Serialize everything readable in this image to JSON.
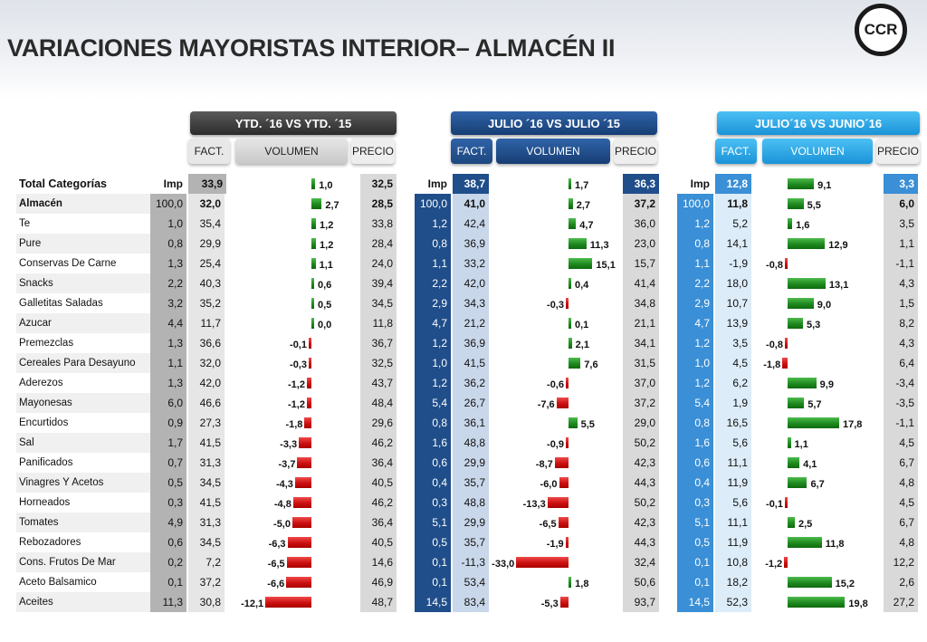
{
  "title": "VARIACIONES MAYORISTAS INTERIOR– ALMACÉN II",
  "logo_text": "CCR",
  "colors": {
    "ytd_header": "#3c3c3c",
    "julio_header": "#1e4d8c",
    "mom_header": "#2aa8e8",
    "ytd_imp": "#b3b3b3",
    "julio_imp": "#1f4e8a",
    "julio_vol": "#c9d7ea",
    "mom_imp": "#3a8fd6",
    "mom_vol": "#dcecf8",
    "precio_bg": "#d9d9d9",
    "gray_bg": "#e6e6e6",
    "positive": "#1f8a1f",
    "negative": "#cc1111"
  },
  "groups": [
    {
      "label": "YTD. ´16 VS YTD. ´15",
      "fact": "FACT.",
      "volumen": "VOLUMEN",
      "precio": "PRECIO"
    },
    {
      "label": "JULIO ´16 VS  JULIO ´15",
      "fact": "FACT.",
      "volumen": "VOLUMEN",
      "precio": "PRECIO"
    },
    {
      "label": "JULIO´16 VS JUNIO´16",
      "fact": "FACT.",
      "volumen": "VOLUMEN",
      "precio": "PRECIO"
    }
  ],
  "table_header": {
    "category": "Total  Categorías",
    "imp1": "Imp",
    "fact1": "33,9",
    "vol1": "1,0",
    "precio1": "32,5",
    "imp2": "Imp",
    "fact2": "38,7",
    "vol2": "1,7",
    "precio2": "36,3",
    "imp3": "Imp",
    "fact3": "12,8",
    "vol3": "9,1",
    "precio3": "3,3"
  },
  "chart_data": {
    "type": "table",
    "title": "VARIACIONES MAYORISTAS INTERIOR– ALMACÉN II",
    "columns": [
      "Imp",
      "FACT.",
      "VOLUMEN",
      "PRECIO"
    ],
    "totals": {
      "ytd": {
        "fact": 33.9,
        "vol": 1.0,
        "precio": 32.5
      },
      "julio": {
        "fact": 38.7,
        "vol": 1.7,
        "precio": 36.3
      },
      "mom": {
        "fact": 12.8,
        "vol": 9.1,
        "precio": 3.3
      }
    },
    "rows": [
      {
        "name": "Almacén",
        "bold": true,
        "ytd": {
          "imp": "100,0",
          "fact": "32,0",
          "vol": 2.7,
          "vol_label": "2,7",
          "precio": "28,5"
        },
        "julio": {
          "imp": "100,0",
          "fact": "41,0",
          "vol": 2.7,
          "vol_label": "2,7",
          "precio": "37,2"
        },
        "mom": {
          "imp": "100,0",
          "fact": "11,8",
          "vol": 5.5,
          "vol_label": "5,5",
          "precio": "6,0"
        }
      },
      {
        "name": "Te",
        "ytd": {
          "imp": "1,0",
          "fact": "35,4",
          "vol": 1.2,
          "vol_label": "1,2",
          "precio": "33,8"
        },
        "julio": {
          "imp": "1,2",
          "fact": "42,4",
          "vol": 4.7,
          "vol_label": "4,7",
          "precio": "36,0"
        },
        "mom": {
          "imp": "1,2",
          "fact": "5,2",
          "vol": 1.6,
          "vol_label": "1,6",
          "precio": "3,5"
        }
      },
      {
        "name": "Pure",
        "ytd": {
          "imp": "0,8",
          "fact": "29,9",
          "vol": 1.2,
          "vol_label": "1,2",
          "precio": "28,4"
        },
        "julio": {
          "imp": "0,8",
          "fact": "36,9",
          "vol": 11.3,
          "vol_label": "11,3",
          "precio": "23,0"
        },
        "mom": {
          "imp": "0,8",
          "fact": "14,1",
          "vol": 12.9,
          "vol_label": "12,9",
          "precio": "1,1"
        }
      },
      {
        "name": "Conservas De Carne",
        "ytd": {
          "imp": "1,3",
          "fact": "25,4",
          "vol": 1.1,
          "vol_label": "1,1",
          "precio": "24,0"
        },
        "julio": {
          "imp": "1,1",
          "fact": "33,2",
          "vol": 15.1,
          "vol_label": "15,1",
          "precio": "15,7"
        },
        "mom": {
          "imp": "1,1",
          "fact": "-1,9",
          "vol": -0.8,
          "vol_label": "-0,8",
          "precio": "-1,1"
        }
      },
      {
        "name": "Snacks",
        "ytd": {
          "imp": "2,2",
          "fact": "40,3",
          "vol": 0.6,
          "vol_label": "0,6",
          "precio": "39,4"
        },
        "julio": {
          "imp": "2,2",
          "fact": "42,0",
          "vol": 0.4,
          "vol_label": "0,4",
          "precio": "41,4"
        },
        "mom": {
          "imp": "2,2",
          "fact": "18,0",
          "vol": 13.1,
          "vol_label": "13,1",
          "precio": "4,3"
        }
      },
      {
        "name": "Galletitas Saladas",
        "ytd": {
          "imp": "3,2",
          "fact": "35,2",
          "vol": 0.5,
          "vol_label": "0,5",
          "precio": "34,5"
        },
        "julio": {
          "imp": "2,9",
          "fact": "34,3",
          "vol": -0.3,
          "vol_label": "-0,3",
          "precio": "34,8"
        },
        "mom": {
          "imp": "2,9",
          "fact": "10,7",
          "vol": 9.0,
          "vol_label": "9,0",
          "precio": "1,5"
        }
      },
      {
        "name": "Azucar",
        "ytd": {
          "imp": "4,4",
          "fact": "11,7",
          "vol": 0.0,
          "vol_label": "0,0",
          "precio": "11,8"
        },
        "julio": {
          "imp": "4,7",
          "fact": "21,2",
          "vol": 0.1,
          "vol_label": "0,1",
          "precio": "21,1"
        },
        "mom": {
          "imp": "4,7",
          "fact": "13,9",
          "vol": 5.3,
          "vol_label": "5,3",
          "precio": "8,2"
        }
      },
      {
        "name": "Premezclas",
        "ytd": {
          "imp": "1,3",
          "fact": "36,6",
          "vol": -0.1,
          "vol_label": "-0,1",
          "precio": "36,7"
        },
        "julio": {
          "imp": "1,2",
          "fact": "36,9",
          "vol": 2.1,
          "vol_label": "2,1",
          "precio": "34,1"
        },
        "mom": {
          "imp": "1,2",
          "fact": "3,5",
          "vol": -0.8,
          "vol_label": "-0,8",
          "precio": "4,3"
        }
      },
      {
        "name": "Cereales Para Desayuno",
        "ytd": {
          "imp": "1,1",
          "fact": "32,0",
          "vol": -0.3,
          "vol_label": "-0,3",
          "precio": "32,5"
        },
        "julio": {
          "imp": "1,0",
          "fact": "41,5",
          "vol": 7.6,
          "vol_label": "7,6",
          "precio": "31,5"
        },
        "mom": {
          "imp": "1,0",
          "fact": "4,5",
          "vol": -1.8,
          "vol_label": "-1,8",
          "precio": "6,4"
        }
      },
      {
        "name": "Aderezos",
        "ytd": {
          "imp": "1,3",
          "fact": "42,0",
          "vol": -1.2,
          "vol_label": "-1,2",
          "precio": "43,7"
        },
        "julio": {
          "imp": "1,2",
          "fact": "36,2",
          "vol": -0.6,
          "vol_label": "-0,6",
          "precio": "37,0"
        },
        "mom": {
          "imp": "1,2",
          "fact": "6,2",
          "vol": 9.9,
          "vol_label": "9,9",
          "precio": "-3,4"
        }
      },
      {
        "name": "Mayonesas",
        "ytd": {
          "imp": "6,0",
          "fact": "46,6",
          "vol": -1.2,
          "vol_label": "-1,2",
          "precio": "48,4"
        },
        "julio": {
          "imp": "5,4",
          "fact": "26,7",
          "vol": -7.6,
          "vol_label": "-7,6",
          "precio": "37,2"
        },
        "mom": {
          "imp": "5,4",
          "fact": "1,9",
          "vol": 5.7,
          "vol_label": "5,7",
          "precio": "-3,5"
        }
      },
      {
        "name": "Encurtidos",
        "ytd": {
          "imp": "0,9",
          "fact": "27,3",
          "vol": -1.8,
          "vol_label": "-1,8",
          "precio": "29,6"
        },
        "julio": {
          "imp": "0,8",
          "fact": "36,1",
          "vol": 5.5,
          "vol_label": "5,5",
          "precio": "29,0"
        },
        "mom": {
          "imp": "0,8",
          "fact": "16,5",
          "vol": 17.8,
          "vol_label": "17,8",
          "precio": "-1,1"
        }
      },
      {
        "name": "Sal",
        "ytd": {
          "imp": "1,7",
          "fact": "41,5",
          "vol": -3.3,
          "vol_label": "-3,3",
          "precio": "46,2"
        },
        "julio": {
          "imp": "1,6",
          "fact": "48,8",
          "vol": -0.9,
          "vol_label": "-0,9",
          "precio": "50,2"
        },
        "mom": {
          "imp": "1,6",
          "fact": "5,6",
          "vol": 1.1,
          "vol_label": "1,1",
          "precio": "4,5"
        }
      },
      {
        "name": "Panificados",
        "ytd": {
          "imp": "0,7",
          "fact": "31,3",
          "vol": -3.7,
          "vol_label": "-3,7",
          "precio": "36,4"
        },
        "julio": {
          "imp": "0,6",
          "fact": "29,9",
          "vol": -8.7,
          "vol_label": "-8,7",
          "precio": "42,3"
        },
        "mom": {
          "imp": "0,6",
          "fact": "11,1",
          "vol": 4.1,
          "vol_label": "4,1",
          "precio": "6,7"
        }
      },
      {
        "name": "Vinagres Y Acetos",
        "ytd": {
          "imp": "0,5",
          "fact": "34,5",
          "vol": -4.3,
          "vol_label": "-4,3",
          "precio": "40,5"
        },
        "julio": {
          "imp": "0,4",
          "fact": "35,7",
          "vol": -6.0,
          "vol_label": "-6,0",
          "precio": "44,3"
        },
        "mom": {
          "imp": "0,4",
          "fact": "11,9",
          "vol": 6.7,
          "vol_label": "6,7",
          "precio": "4,8"
        }
      },
      {
        "name": "Horneados",
        "ytd": {
          "imp": "0,3",
          "fact": "41,5",
          "vol": -4.8,
          "vol_label": "-4,8",
          "precio": "46,2"
        },
        "julio": {
          "imp": "0,3",
          "fact": "48,8",
          "vol": -13.3,
          "vol_label": "-13,3",
          "precio": "50,2"
        },
        "mom": {
          "imp": "0,3",
          "fact": "5,6",
          "vol": -0.1,
          "vol_label": "-0,1",
          "precio": "4,5"
        }
      },
      {
        "name": "Tomates",
        "ytd": {
          "imp": "4,9",
          "fact": "31,3",
          "vol": -5.0,
          "vol_label": "-5,0",
          "precio": "36,4"
        },
        "julio": {
          "imp": "5,1",
          "fact": "29,9",
          "vol": -6.5,
          "vol_label": "-6,5",
          "precio": "42,3"
        },
        "mom": {
          "imp": "5,1",
          "fact": "11,1",
          "vol": 2.5,
          "vol_label": "2,5",
          "precio": "6,7"
        }
      },
      {
        "name": "Rebozadores",
        "ytd": {
          "imp": "0,6",
          "fact": "34,5",
          "vol": -6.3,
          "vol_label": "-6,3",
          "precio": "40,5"
        },
        "julio": {
          "imp": "0,5",
          "fact": "35,7",
          "vol": -1.9,
          "vol_label": "-1,9",
          "precio": "44,3"
        },
        "mom": {
          "imp": "0,5",
          "fact": "11,9",
          "vol": 11.8,
          "vol_label": "11,8",
          "precio": "4,8"
        }
      },
      {
        "name": "Cons. Frutos De Mar",
        "ytd": {
          "imp": "0,2",
          "fact": "7,2",
          "vol": -6.5,
          "vol_label": "-6,5",
          "precio": "14,6"
        },
        "julio": {
          "imp": "0,1",
          "fact": "-11,3",
          "vol": -33.0,
          "vol_label": "-33,0",
          "precio": "32,4"
        },
        "mom": {
          "imp": "0,1",
          "fact": "10,8",
          "vol": -1.2,
          "vol_label": "-1,2",
          "precio": "12,2"
        }
      },
      {
        "name": "Aceto Balsamico",
        "ytd": {
          "imp": "0,1",
          "fact": "37,2",
          "vol": -6.6,
          "vol_label": "-6,6",
          "precio": "46,9"
        },
        "julio": {
          "imp": "0,1",
          "fact": "53,4",
          "vol": 1.8,
          "vol_label": "1,8",
          "precio": "50,6"
        },
        "mom": {
          "imp": "0,1",
          "fact": "18,2",
          "vol": 15.2,
          "vol_label": "15,2",
          "precio": "2,6"
        }
      },
      {
        "name": "Aceites",
        "ytd": {
          "imp": "11,3",
          "fact": "30,8",
          "vol": -12.1,
          "vol_label": "-12,1",
          "precio": "48,7"
        },
        "julio": {
          "imp": "14,5",
          "fact": "83,4",
          "vol": -5.3,
          "vol_label": "-5,3",
          "precio": "93,7"
        },
        "mom": {
          "imp": "14,5",
          "fact": "52,3",
          "vol": 19.8,
          "vol_label": "19,8",
          "precio": "27,2"
        }
      }
    ]
  }
}
